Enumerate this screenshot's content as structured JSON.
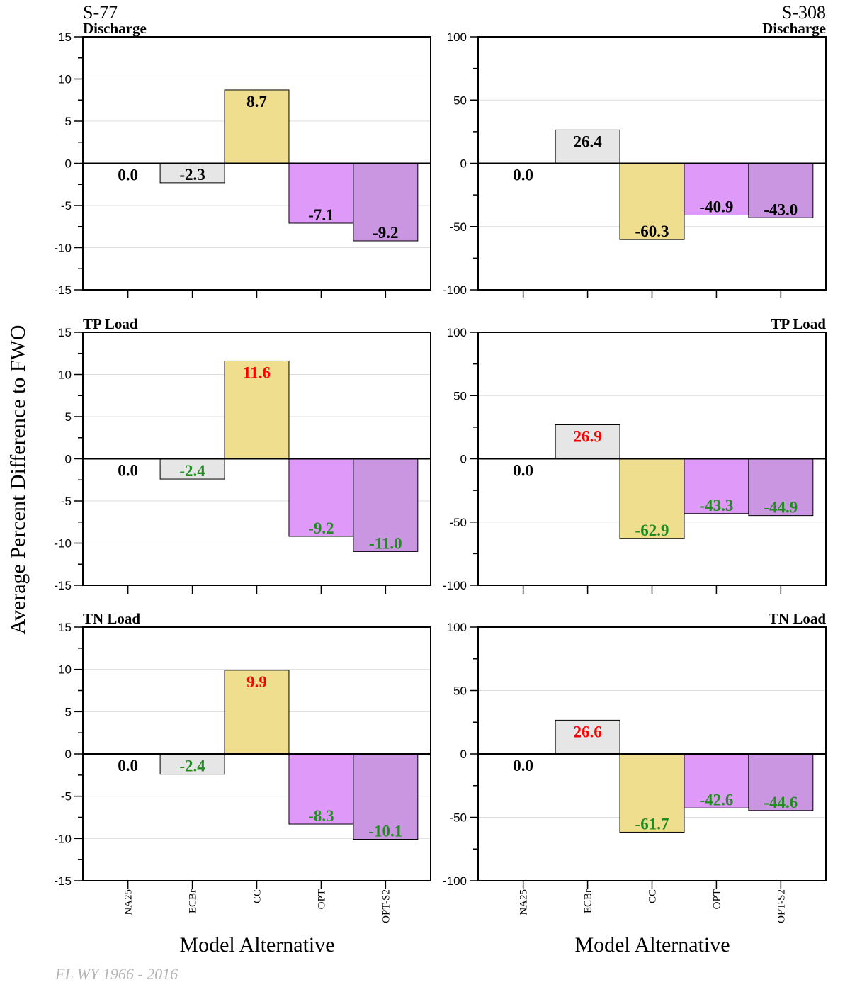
{
  "ylabel": "Average Percent Difference to FWO",
  "xlabel": "Model Alternative",
  "footnote": "FL WY 1966 - 2016",
  "colors": {
    "NA25": "#ffffff",
    "ECBr": "#e6e6e6",
    "CC": "#f0de8f",
    "OPT": "#df99f8",
    "OPT-S2": "#ca96e2",
    "label_neutral": "#000000",
    "label_increase": "#ff0000",
    "label_decrease": "#228b22"
  },
  "chart_data": [
    {
      "type": "bar",
      "station": "S-77",
      "metric": "Discharge",
      "categories": [
        "NA25",
        "ECBr",
        "CC",
        "OPT",
        "OPT-S2"
      ],
      "values": [
        0.0,
        -2.3,
        8.7,
        -7.1,
        -9.2
      ],
      "labels": [
        "0.0",
        "-2.3",
        "8.7",
        "-7.1",
        "-9.2"
      ],
      "label_colors": [
        "neutral",
        "neutral",
        "neutral",
        "neutral",
        "neutral"
      ],
      "ylim": [
        -15,
        15
      ],
      "yticks": [
        15,
        10,
        5,
        0,
        -5,
        -10,
        -15
      ],
      "grid": true
    },
    {
      "type": "bar",
      "station": "S-308",
      "metric": "Discharge",
      "categories": [
        "NA25",
        "ECBr",
        "CC",
        "OPT",
        "OPT-S2"
      ],
      "values": [
        0.0,
        26.4,
        -60.3,
        -40.9,
        -43.0
      ],
      "labels": [
        "0.0",
        "26.4",
        "-60.3",
        "-40.9",
        "-43.0"
      ],
      "label_colors": [
        "neutral",
        "neutral",
        "neutral",
        "neutral",
        "neutral"
      ],
      "ylim": [
        -100,
        100
      ],
      "yticks": [
        100,
        50,
        0,
        -50,
        -100
      ],
      "grid": true
    },
    {
      "type": "bar",
      "station": "",
      "metric": "TP Load",
      "categories": [
        "NA25",
        "ECBr",
        "CC",
        "OPT",
        "OPT-S2"
      ],
      "values": [
        0.0,
        -2.4,
        11.6,
        -9.2,
        -11.0
      ],
      "labels": [
        "0.0",
        "-2.4",
        "11.6",
        "-9.2",
        "-11.0"
      ],
      "label_colors": [
        "neutral",
        "decrease",
        "increase",
        "decrease",
        "decrease"
      ],
      "ylim": [
        -15,
        15
      ],
      "yticks": [
        15,
        10,
        5,
        0,
        -5,
        -10,
        -15
      ],
      "grid": true
    },
    {
      "type": "bar",
      "station": "",
      "metric": "TP Load",
      "categories": [
        "NA25",
        "ECBr",
        "CC",
        "OPT",
        "OPT-S2"
      ],
      "values": [
        0.0,
        26.9,
        -62.9,
        -43.3,
        -44.9
      ],
      "labels": [
        "0.0",
        "26.9",
        "-62.9",
        "-43.3",
        "-44.9"
      ],
      "label_colors": [
        "neutral",
        "increase",
        "decrease",
        "decrease",
        "decrease"
      ],
      "ylim": [
        -100,
        100
      ],
      "yticks": [
        100,
        50,
        0,
        -50,
        -100
      ],
      "grid": true
    },
    {
      "type": "bar",
      "station": "",
      "metric": "TN Load",
      "categories": [
        "NA25",
        "ECBr",
        "CC",
        "OPT",
        "OPT-S2"
      ],
      "values": [
        0.0,
        -2.4,
        9.9,
        -8.3,
        -10.1
      ],
      "labels": [
        "0.0",
        "-2.4",
        "9.9",
        "-8.3",
        "-10.1"
      ],
      "label_colors": [
        "neutral",
        "decrease",
        "increase",
        "decrease",
        "decrease"
      ],
      "ylim": [
        -15,
        15
      ],
      "yticks": [
        15,
        10,
        5,
        0,
        -5,
        -10,
        -15
      ],
      "grid": true
    },
    {
      "type": "bar",
      "station": "",
      "metric": "TN Load",
      "categories": [
        "NA25",
        "ECBr",
        "CC",
        "OPT",
        "OPT-S2"
      ],
      "values": [
        0.0,
        26.6,
        -61.7,
        -42.6,
        -44.6
      ],
      "labels": [
        "0.0",
        "26.6",
        "-61.7",
        "-42.6",
        "-44.6"
      ],
      "label_colors": [
        "neutral",
        "increase",
        "decrease",
        "decrease",
        "decrease"
      ],
      "ylim": [
        -100,
        100
      ],
      "yticks": [
        100,
        50,
        0,
        -50,
        -100
      ],
      "grid": true
    }
  ]
}
